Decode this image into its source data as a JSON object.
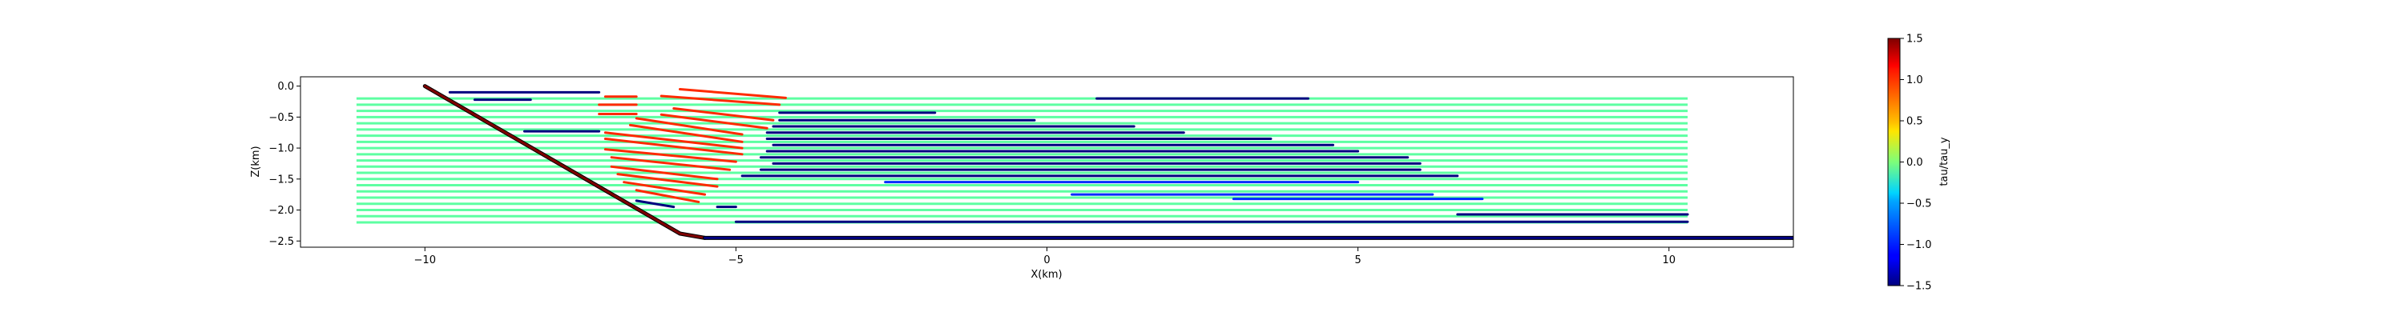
{
  "chart_data": {
    "type": "line",
    "title": "",
    "xlabel": "X(km)",
    "ylabel": "Z(km)",
    "xlim": [
      -12.0,
      12.0
    ],
    "ylim": [
      -2.6,
      0.15
    ],
    "xticks": [
      -10,
      -5,
      0,
      5,
      10
    ],
    "yticks": [
      0.0,
      -0.5,
      -1.0,
      -1.5,
      -2.0,
      -2.5
    ],
    "xtick_labels": [
      "−10",
      "−5",
      "0",
      "5",
      "10"
    ],
    "ytick_labels": [
      "0.0",
      "−0.5",
      "−1.0",
      "−1.5",
      "−2.0",
      "−2.5"
    ],
    "grid": false,
    "colorbar": {
      "label": "tau/tau_y",
      "range": [
        -1.5,
        1.5
      ],
      "colormap": "jet",
      "ticks": [
        1.5,
        1.0,
        0.5,
        0.0,
        -0.5,
        -1.0,
        -1.5
      ],
      "tick_labels": [
        "1.5",
        "1.0",
        "0.5",
        "0.0",
        "−0.5",
        "−1.0",
        "−1.5"
      ]
    },
    "boundary": {
      "slope": {
        "x": [
          -10.0,
          -5.9,
          -5.5
        ],
        "z": [
          0.0,
          -2.38,
          -2.45
        ],
        "value": 1.5
      },
      "base": {
        "x": [
          -5.5,
          12.0
        ],
        "z": [
          -2.45,
          -2.45
        ],
        "value": -1.5
      }
    },
    "series": [
      {
        "x": [
          -9.6,
          -7.2
        ],
        "z": [
          -0.1,
          -0.1
        ],
        "value": -1.5
      },
      {
        "x": [
          -9.2,
          -8.3
        ],
        "z": [
          -0.22,
          -0.22
        ],
        "value": -1.5
      },
      {
        "x": [
          -8.4,
          -7.2
        ],
        "z": [
          -0.73,
          -0.73
        ],
        "value": -1.5
      },
      {
        "x": [
          -4.3,
          -1.8
        ],
        "z": [
          -0.43,
          -0.43
        ],
        "value": -1.5
      },
      {
        "x": [
          -4.3,
          -0.2
        ],
        "z": [
          -0.55,
          -0.55
        ],
        "value": -1.5
      },
      {
        "x": [
          -4.4,
          1.4
        ],
        "z": [
          -0.65,
          -0.65
        ],
        "value": -1.5
      },
      {
        "x": [
          -4.5,
          2.2
        ],
        "z": [
          -0.75,
          -0.75
        ],
        "value": -1.5
      },
      {
        "x": [
          -4.5,
          3.6
        ],
        "z": [
          -0.85,
          -0.85
        ],
        "value": -1.5
      },
      {
        "x": [
          -4.4,
          4.6
        ],
        "z": [
          -0.95,
          -0.95
        ],
        "value": -1.5
      },
      {
        "x": [
          -4.5,
          5.0
        ],
        "z": [
          -1.05,
          -1.05
        ],
        "value": -1.5
      },
      {
        "x": [
          -4.6,
          5.8
        ],
        "z": [
          -1.15,
          -1.15
        ],
        "value": -1.5
      },
      {
        "x": [
          -4.4,
          6.0
        ],
        "z": [
          -1.25,
          -1.25
        ],
        "value": -1.5
      },
      {
        "x": [
          -4.6,
          6.0
        ],
        "z": [
          -1.35,
          -1.35
        ],
        "value": -1.5
      },
      {
        "x": [
          -4.9,
          6.6
        ],
        "z": [
          -1.45,
          -1.45
        ],
        "value": -1.5
      },
      {
        "x": [
          0.8,
          4.2
        ],
        "z": [
          -0.2,
          -0.2
        ],
        "value": -1.5
      },
      {
        "x": [
          -5.0,
          10.3
        ],
        "z": [
          -2.19,
          -2.19
        ],
        "value": -1.5
      },
      {
        "x": [
          6.6,
          10.3
        ],
        "z": [
          -2.07,
          -2.07
        ],
        "value": -1.5
      },
      {
        "x": [
          -6.6,
          -6.0
        ],
        "z": [
          -1.85,
          -1.95
        ],
        "value": -1.5
      },
      {
        "x": [
          -5.3,
          -5.0
        ],
        "z": [
          -1.95,
          -1.95
        ],
        "value": -1.5
      },
      {
        "x": [
          -2.6,
          5.0
        ],
        "z": [
          -1.55,
          -1.55
        ],
        "value": -1.0
      },
      {
        "x": [
          0.4,
          6.2
        ],
        "z": [
          -1.75,
          -1.75
        ],
        "value": -1.0
      },
      {
        "x": [
          3.0,
          7.0
        ],
        "z": [
          -1.82,
          -1.82
        ],
        "value": -1.0
      },
      {
        "x": [
          -5.9,
          -4.2
        ],
        "z": [
          -0.05,
          -0.19
        ],
        "value": 1.0
      },
      {
        "x": [
          -6.2,
          -4.3
        ],
        "z": [
          -0.16,
          -0.3
        ],
        "value": 1.0
      },
      {
        "x": [
          -6.0,
          -4.4
        ],
        "z": [
          -0.36,
          -0.55
        ],
        "value": 1.0
      },
      {
        "x": [
          -6.2,
          -4.5
        ],
        "z": [
          -0.46,
          -0.68
        ],
        "value": 1.0
      },
      {
        "x": [
          -6.6,
          -4.9
        ],
        "z": [
          -0.52,
          -0.78
        ],
        "value": 1.0
      },
      {
        "x": [
          -6.7,
          -4.9
        ],
        "z": [
          -0.63,
          -0.9
        ],
        "value": 1.0
      },
      {
        "x": [
          -7.1,
          -4.9
        ],
        "z": [
          -0.75,
          -1.0
        ],
        "value": 1.0
      },
      {
        "x": [
          -7.1,
          -4.9
        ],
        "z": [
          -0.85,
          -1.1
        ],
        "value": 1.0
      },
      {
        "x": [
          -7.1,
          -5.0
        ],
        "z": [
          -1.02,
          -1.22
        ],
        "value": 1.0
      },
      {
        "x": [
          -7.0,
          -5.1
        ],
        "z": [
          -1.15,
          -1.35
        ],
        "value": 1.0
      },
      {
        "x": [
          -7.0,
          -5.3
        ],
        "z": [
          -1.3,
          -1.5
        ],
        "value": 1.0
      },
      {
        "x": [
          -6.9,
          -5.3
        ],
        "z": [
          -1.42,
          -1.62
        ],
        "value": 1.0
      },
      {
        "x": [
          -6.8,
          -5.5
        ],
        "z": [
          -1.55,
          -1.75
        ],
        "value": 1.0
      },
      {
        "x": [
          -6.6,
          -5.6
        ],
        "z": [
          -1.68,
          -1.87
        ],
        "value": 1.0
      },
      {
        "x": [
          -7.2,
          -6.6
        ],
        "z": [
          -0.3,
          -0.3
        ],
        "value": 1.0
      },
      {
        "x": [
          -7.2,
          -6.6
        ],
        "z": [
          -0.45,
          -0.45
        ],
        "value": 1.0
      },
      {
        "x": [
          -7.1,
          -6.6
        ],
        "z": [
          -0.17,
          -0.17
        ],
        "value": 1.0
      }
    ],
    "background_layers": {
      "value": -0.1,
      "x": [
        -11.1,
        10.3
      ],
      "z": [
        -0.2,
        -0.3,
        -0.4,
        -0.5,
        -0.6,
        -0.7,
        -0.8,
        -0.9,
        -1.0,
        -1.1,
        -1.2,
        -1.3,
        -1.4,
        -1.5,
        -1.6,
        -1.7,
        -1.8,
        -1.9,
        -2.0,
        -2.1,
        -2.2
      ]
    }
  }
}
